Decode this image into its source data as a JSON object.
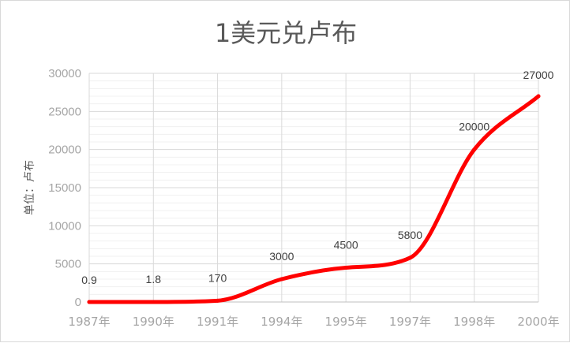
{
  "chart_data": {
    "type": "line",
    "title": "1美元兑卢布",
    "ylabel": "单位：卢布",
    "xlabel": "",
    "categories": [
      "1987年",
      "1990年",
      "1991年",
      "1994年",
      "1995年",
      "1997年",
      "1998年",
      "2000年"
    ],
    "series": [
      {
        "values": [
          0.9,
          1.8,
          170,
          3000,
          4500,
          5800,
          20000,
          27000
        ]
      }
    ],
    "data_labels": [
      "0.9",
      "1.8",
      "170",
      "3000",
      "4500",
      "5800",
      "20000",
      "27000"
    ],
    "ylim": [
      0,
      30000
    ],
    "yticks": [
      "0",
      "5000",
      "10000",
      "15000",
      "20000",
      "25000",
      "30000"
    ],
    "grid": true,
    "minor_grid": true,
    "smooth": true,
    "legend": "none",
    "line_color": "#ff0000"
  }
}
